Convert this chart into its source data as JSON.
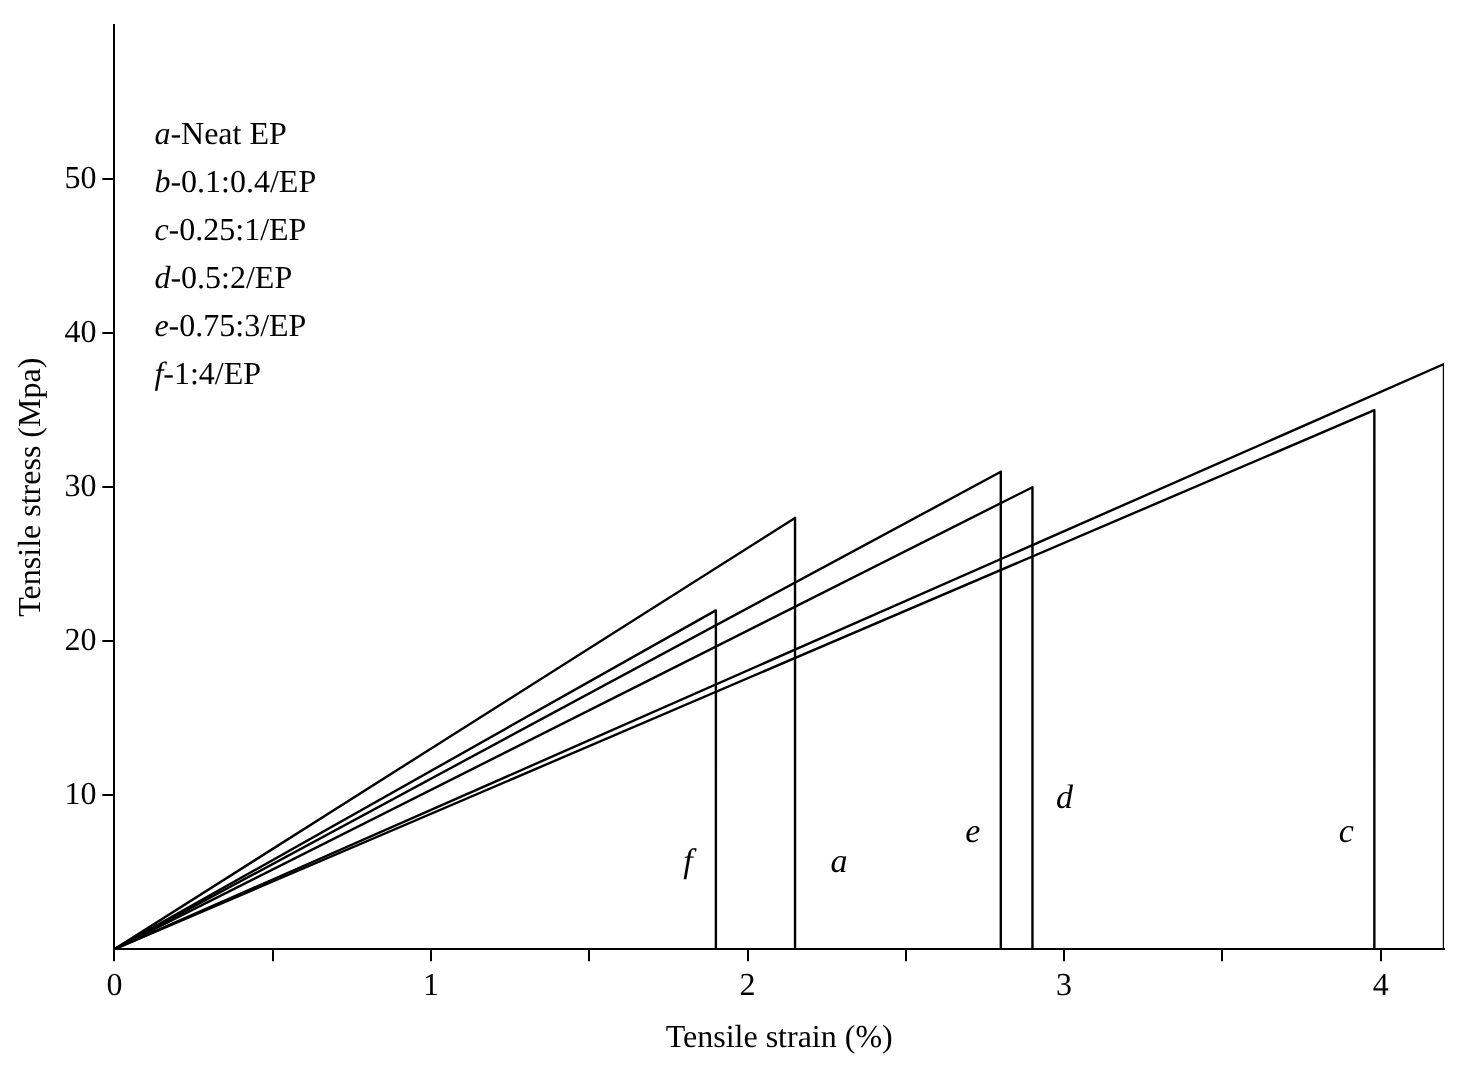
{
  "chart_data": {
    "type": "line",
    "xlabel": "Tensile strain (%)",
    "ylabel": "Tensile stress (Mpa)",
    "xlim": [
      0,
      4.2
    ],
    "ylim": [
      0,
      60
    ],
    "xticks": [
      0,
      {
        "value": 0.5,
        "label": null
      },
      1,
      {
        "value": 1.5,
        "label": null
      },
      2,
      {
        "value": 2.5,
        "label": null
      },
      3,
      {
        "value": 3.5,
        "label": null
      },
      4
    ],
    "yticks": [
      10,
      20,
      30,
      40,
      50
    ],
    "grid": false,
    "legend": false,
    "marker": "none",
    "line_style": "solid",
    "series": [
      {
        "name": "a",
        "color": "#000000",
        "x": [
          0,
          2.15,
          2.15
        ],
        "values": [
          0,
          28,
          0
        ]
      },
      {
        "color": "#000000",
        "x": [
          0,
          4.2,
          4.2
        ],
        "values": [
          0,
          38,
          0
        ]
      },
      {
        "name": "c",
        "color": "#000000",
        "x": [
          0,
          3.98,
          3.98
        ],
        "values": [
          0,
          35,
          0
        ]
      },
      {
        "name": "d",
        "color": "#000000",
        "x": [
          0,
          2.9,
          2.9
        ],
        "values": [
          0,
          30,
          0
        ]
      },
      {
        "name": "e",
        "color": "#000000",
        "x": [
          0,
          2.8,
          2.8
        ],
        "values": [
          0,
          31,
          0
        ]
      },
      {
        "name": "f",
        "color": "#000000",
        "x": [
          0,
          1.9,
          1.9
        ],
        "values": [
          0,
          22,
          0
        ]
      }
    ],
    "annotations": [
      "a-Neat EP",
      "b-0.1:0.4/EP",
      "c-0.25:1/EP",
      "d-0.5:2/EP",
      "e-0.75:3/EP",
      "f-1:4/EP"
    ]
  }
}
